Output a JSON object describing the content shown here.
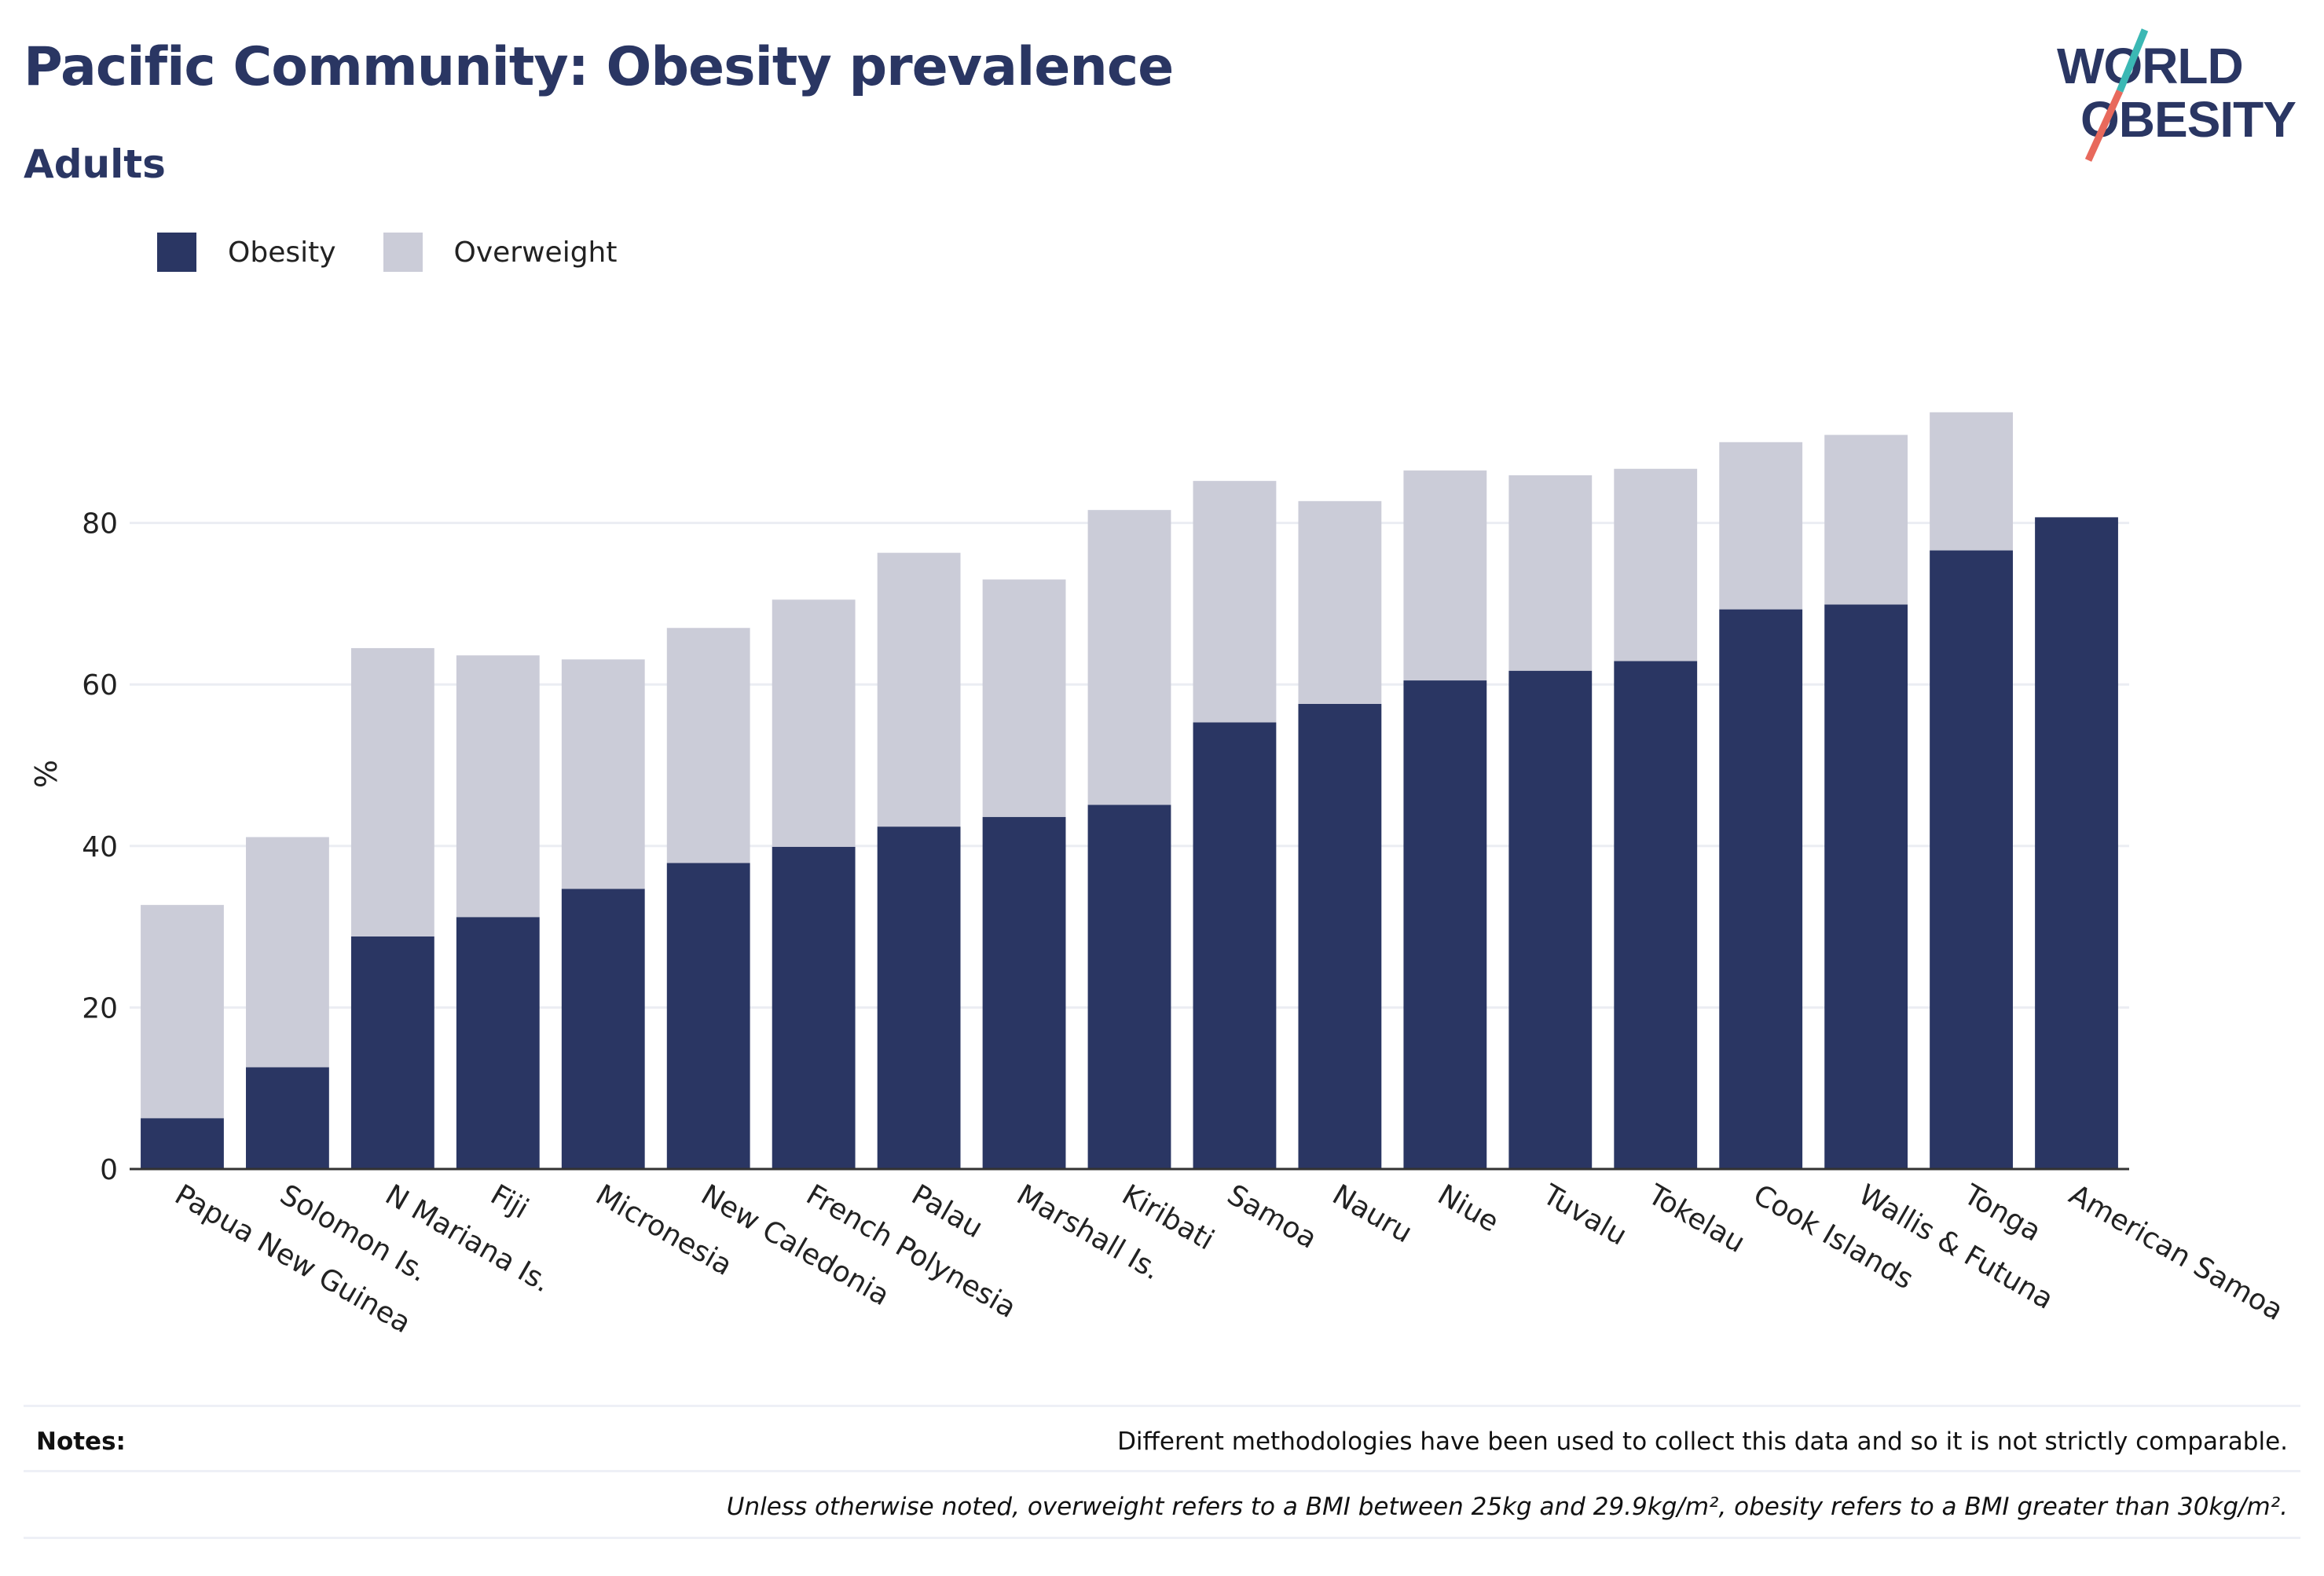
{
  "header": {
    "title": "Pacific Community: Obesity prevalence",
    "subtitle": "Adults"
  },
  "logo": {
    "line1": "WORLD",
    "line2": "OBESITY"
  },
  "colors": {
    "obesity": "#2a3663",
    "overweight": "#cbccd8",
    "accent_teal": "#3bb8b4",
    "accent_red": "#e8695c"
  },
  "notes": {
    "label": "Notes:",
    "items": [
      "Different methodologies have been used to collect this data and so it is not strictly comparable.",
      "Unless otherwise noted, overweight refers to a BMI between 25kg and 29.9kg/m², obesity refers to a BMI greater than 30kg/m²."
    ]
  },
  "chart_data": {
    "type": "bar",
    "stacked": true,
    "ylabel": "%",
    "xlabel": "",
    "ylim": [
      0,
      100
    ],
    "yticks": [
      0,
      20,
      40,
      60,
      80
    ],
    "grid": true,
    "legend_position": "top-left",
    "categories": [
      "Papua New Guinea",
      "Solomon Is.",
      "N Mariana Is.",
      "Fiji",
      "Micronesia",
      "New Caledonia",
      "French Polynesia",
      "Palau",
      "Marshall Is.",
      "Kiribati",
      "Samoa",
      "Nauru",
      "Niue",
      "Tuvalu",
      "Tokelau",
      "Cook Islands",
      "Wallis & Futuna",
      "Tonga",
      "American Samoa"
    ],
    "series": [
      {
        "name": "Obesity",
        "color": "#2a3663",
        "values": [
          6.3,
          12.6,
          28.8,
          31.2,
          34.7,
          37.9,
          39.9,
          42.4,
          43.6,
          45.1,
          55.3,
          57.6,
          60.5,
          61.7,
          62.9,
          69.3,
          69.9,
          76.6,
          80.7
        ]
      },
      {
        "name": "Overweight",
        "color": "#cbccd8",
        "values": [
          26.4,
          28.5,
          35.7,
          32.4,
          28.4,
          29.1,
          30.6,
          33.9,
          29.4,
          36.5,
          29.9,
          25.1,
          26.0,
          24.2,
          23.8,
          20.7,
          21.0,
          17.1,
          0
        ]
      }
    ]
  }
}
